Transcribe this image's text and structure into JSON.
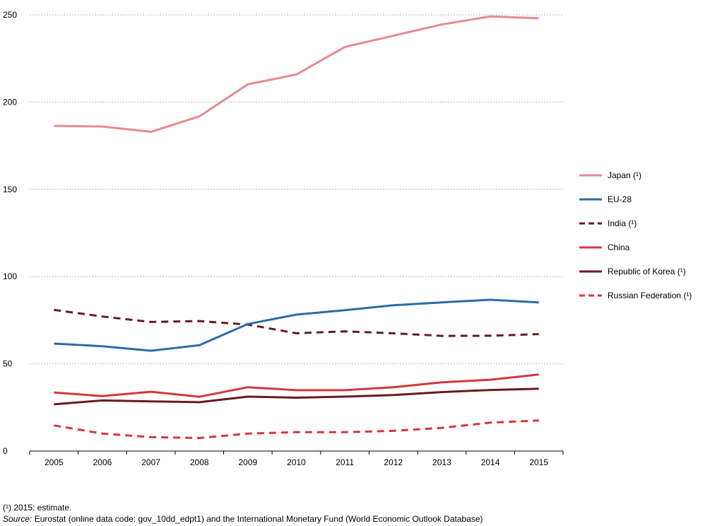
{
  "chart_data": {
    "type": "line",
    "title": "",
    "xlabel": "",
    "ylabel": "",
    "x": [
      "2005",
      "2006",
      "2007",
      "2008",
      "2009",
      "2010",
      "2011",
      "2012",
      "2013",
      "2014",
      "2015"
    ],
    "ylim": [
      0,
      250
    ],
    "yticks": [
      0,
      50,
      100,
      150,
      200,
      250
    ],
    "grid": true,
    "legend_position": "right",
    "series": [
      {
        "name": "Japan (¹)",
        "color": "#e8898f",
        "dashed": false,
        "values": [
          186.4,
          186.0,
          183.0,
          191.8,
          210.2,
          215.8,
          231.6,
          238.0,
          244.5,
          249.1,
          248.0
        ]
      },
      {
        "name": "EU-28",
        "color": "#2e6aa8",
        "dashed": false,
        "values": [
          61.6,
          60.1,
          57.5,
          60.7,
          72.8,
          78.2,
          80.7,
          83.6,
          85.2,
          86.7,
          85.2
        ]
      },
      {
        "name": "India (¹)",
        "color": "#6b1a1f",
        "dashed": true,
        "values": [
          80.9,
          77.1,
          74.0,
          74.5,
          72.5,
          67.5,
          68.6,
          67.5,
          66.0,
          66.1,
          67.0
        ]
      },
      {
        "name": "China",
        "color": "#d6363f",
        "dashed": false,
        "values": [
          33.6,
          31.5,
          34.0,
          31.1,
          36.6,
          34.9,
          34.9,
          36.6,
          39.4,
          40.9,
          43.9
        ]
      },
      {
        "name": "Republic of Korea (¹)",
        "color": "#6b1a1f",
        "dashed": false,
        "values": [
          26.8,
          29.0,
          28.5,
          28.0,
          31.2,
          30.6,
          31.2,
          32.1,
          33.8,
          35.0,
          35.7
        ]
      },
      {
        "name": "Russian Federation (¹)",
        "color": "#d6363f",
        "dashed": true,
        "values": [
          14.7,
          10.0,
          8.0,
          7.5,
          10.0,
          10.8,
          10.8,
          11.6,
          13.3,
          16.3,
          17.5
        ]
      }
    ]
  },
  "footnotes": {
    "estimate": "(¹) 2015: estimate.",
    "source_label": "Source:",
    "source_text": " Eurostat (online data code: gov_10dd_edpt1) and the International Monetary Fund (World Economic Outlook Database)"
  }
}
